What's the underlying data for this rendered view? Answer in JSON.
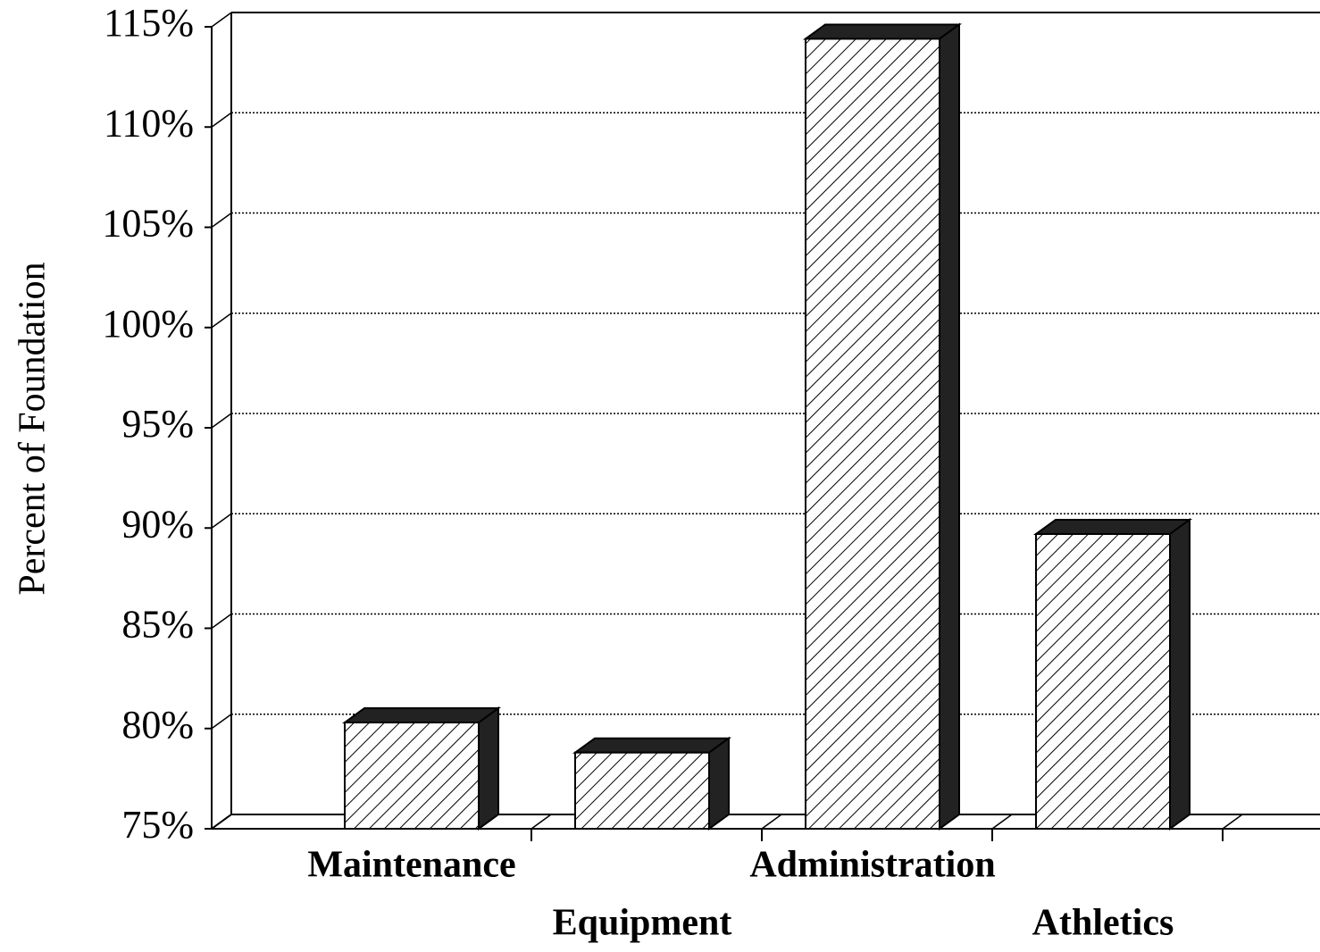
{
  "chart_data": {
    "type": "bar3d",
    "y_label": "Percent of Foundation",
    "categories": [
      "Maintenance",
      "Equipment",
      "Administration",
      "Athletics"
    ],
    "values": [
      80.3,
      78.8,
      114.4,
      89.7
    ],
    "color": "#000000",
    "ylim": [
      75,
      115
    ],
    "yticks": [
      {
        "value": 75,
        "label": "75%"
      },
      {
        "value": 80,
        "label": "80%"
      },
      {
        "value": 85,
        "label": "85%"
      },
      {
        "value": 90,
        "label": "90%"
      },
      {
        "value": 95,
        "label": "95%"
      },
      {
        "value": 100,
        "label": "100%"
      },
      {
        "value": 105,
        "label": "105%"
      },
      {
        "value": 110,
        "label": "110%"
      },
      {
        "value": 115,
        "label": "115%"
      }
    ],
    "grid": true
  }
}
